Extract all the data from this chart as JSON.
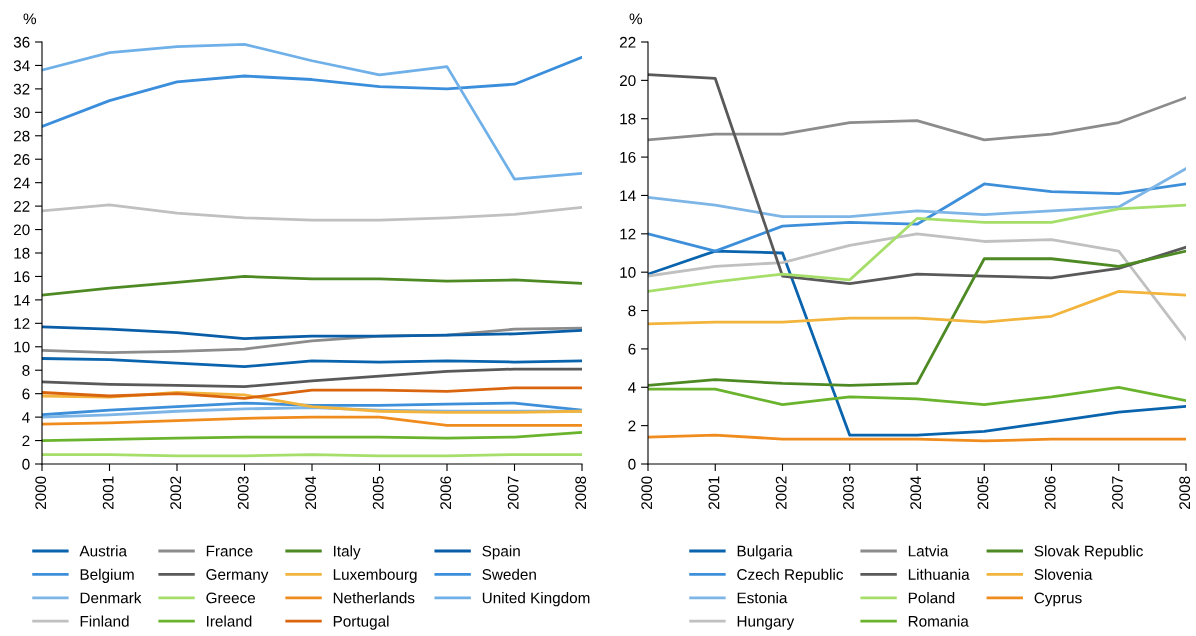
{
  "chart_data": [
    {
      "type": "line",
      "ylabel": "%",
      "categories": [
        "2000",
        "2001",
        "2002",
        "2003",
        "2004",
        "2005",
        "2006",
        "2007",
        "2008"
      ],
      "ylim": [
        0,
        36
      ],
      "yticks": [
        0,
        2,
        4,
        6,
        8,
        10,
        12,
        14,
        16,
        18,
        20,
        22,
        24,
        26,
        28,
        30,
        32,
        34,
        36
      ],
      "legend": "bottom",
      "grid": false,
      "series": [
        {
          "name": "Austria",
          "color": "#0a63ad",
          "values": [
            9.0,
            8.9,
            8.6,
            8.3,
            8.8,
            8.7,
            8.8,
            8.7,
            8.8
          ]
        },
        {
          "name": "Belgium",
          "color": "#3d8fd9",
          "values": [
            4.2,
            4.6,
            4.9,
            5.2,
            5.0,
            5.0,
            5.1,
            5.2,
            4.6
          ]
        },
        {
          "name": "Denmark",
          "color": "#7db5e6",
          "values": [
            4.0,
            4.2,
            4.5,
            4.7,
            4.8,
            4.6,
            4.5,
            4.5,
            4.5
          ]
        },
        {
          "name": "Finland",
          "color": "#c0c0c0",
          "values": [
            21.6,
            22.1,
            21.4,
            21.0,
            20.8,
            20.8,
            21.0,
            21.3,
            21.9
          ]
        },
        {
          "name": "France",
          "color": "#8c8c8c",
          "values": [
            9.7,
            9.5,
            9.6,
            9.8,
            10.5,
            10.9,
            11.0,
            11.5,
            11.6
          ]
        },
        {
          "name": "Germany",
          "color": "#595959",
          "values": [
            7.0,
            6.8,
            6.7,
            6.6,
            7.1,
            7.5,
            7.9,
            8.1,
            8.1
          ]
        },
        {
          "name": "Greece",
          "color": "#a6de6a",
          "values": [
            0.8,
            0.8,
            0.7,
            0.7,
            0.8,
            0.7,
            0.7,
            0.8,
            0.8
          ]
        },
        {
          "name": "Ireland",
          "color": "#6ab42d",
          "values": [
            2.0,
            2.1,
            2.2,
            2.3,
            2.3,
            2.3,
            2.2,
            2.3,
            2.7
          ]
        },
        {
          "name": "Italy",
          "color": "#4e8a24",
          "values": [
            14.4,
            15.0,
            15.5,
            16.0,
            15.8,
            15.8,
            15.6,
            15.7,
            15.4
          ]
        },
        {
          "name": "Luxembourg",
          "color": "#f2b43c",
          "values": [
            5.8,
            5.7,
            6.1,
            5.9,
            4.9,
            4.5,
            4.4,
            4.4,
            4.5
          ]
        },
        {
          "name": "Netherlands",
          "color": "#f08c1e",
          "values": [
            3.4,
            3.5,
            3.7,
            3.9,
            4.0,
            4.0,
            3.3,
            3.3,
            3.3
          ]
        },
        {
          "name": "Portugal",
          "color": "#d9650f",
          "values": [
            6.1,
            5.8,
            6.0,
            5.6,
            6.3,
            6.3,
            6.2,
            6.5,
            6.5
          ]
        },
        {
          "name": "Spain",
          "color": "#0a5ea8",
          "values": [
            11.7,
            11.5,
            11.2,
            10.7,
            10.9,
            10.9,
            11.0,
            11.1,
            11.4
          ]
        },
        {
          "name": "Sweden",
          "color": "#3a8edb",
          "values": [
            28.8,
            31.0,
            32.6,
            33.1,
            32.8,
            32.2,
            32.0,
            32.4,
            34.7
          ]
        },
        {
          "name": "United Kingdom",
          "color": "#6fb0e8",
          "values": [
            33.6,
            35.1,
            35.6,
            35.8,
            34.4,
            33.2,
            33.9,
            24.3,
            24.8
          ]
        }
      ]
    },
    {
      "type": "line",
      "ylabel": "%",
      "categories": [
        "2000",
        "2001",
        "2002",
        "2003",
        "2004",
        "2005",
        "2006",
        "2007",
        "2008"
      ],
      "ylim": [
        0,
        22
      ],
      "yticks": [
        0,
        2,
        4,
        6,
        8,
        10,
        12,
        14,
        16,
        18,
        20,
        22
      ],
      "legend": "bottom",
      "grid": false,
      "series": [
        {
          "name": "Bulgaria",
          "color": "#0a63ad",
          "values": [
            9.9,
            11.1,
            11.0,
            1.5,
            1.5,
            1.7,
            2.2,
            2.7,
            3.0
          ]
        },
        {
          "name": "Czech Republic",
          "color": "#3d8fd9",
          "values": [
            12.0,
            11.1,
            12.4,
            12.6,
            12.5,
            14.6,
            14.2,
            14.1,
            14.6
          ]
        },
        {
          "name": "Estonia",
          "color": "#7db5e6",
          "values": [
            13.9,
            13.5,
            12.9,
            12.9,
            13.2,
            13.0,
            13.2,
            13.4,
            15.4
          ]
        },
        {
          "name": "Hungary",
          "color": "#c0c0c0",
          "values": [
            9.8,
            10.3,
            10.5,
            11.4,
            12.0,
            11.6,
            11.7,
            11.1,
            6.5
          ]
        },
        {
          "name": "Latvia",
          "color": "#8c8c8c",
          "values": [
            16.9,
            17.2,
            17.2,
            17.8,
            17.9,
            16.9,
            17.2,
            17.8,
            19.1
          ]
        },
        {
          "name": "Lithuania",
          "color": "#595959",
          "values": [
            20.3,
            20.1,
            9.8,
            9.4,
            9.9,
            9.8,
            9.7,
            10.2,
            11.3
          ]
        },
        {
          "name": "Poland",
          "color": "#a6de6a",
          "values": [
            9.0,
            9.5,
            9.9,
            9.6,
            12.8,
            12.6,
            12.6,
            13.3,
            13.5
          ]
        },
        {
          "name": "Romania",
          "color": "#6ab42d",
          "values": [
            3.9,
            3.9,
            3.1,
            3.5,
            3.4,
            3.1,
            3.5,
            4.0,
            3.3
          ]
        },
        {
          "name": "Slovak Republic",
          "color": "#4e8a24",
          "values": [
            4.1,
            4.4,
            4.2,
            4.1,
            4.2,
            10.7,
            10.7,
            10.3,
            11.1
          ]
        },
        {
          "name": "Slovenia",
          "color": "#f2b43c",
          "values": [
            7.3,
            7.4,
            7.4,
            7.6,
            7.6,
            7.4,
            7.7,
            9.0,
            8.8
          ]
        },
        {
          "name": "Cyprus",
          "color": "#f08c1e",
          "values": [
            1.4,
            1.5,
            1.3,
            1.3,
            1.3,
            1.2,
            1.3,
            1.3,
            1.3
          ]
        }
      ]
    }
  ]
}
